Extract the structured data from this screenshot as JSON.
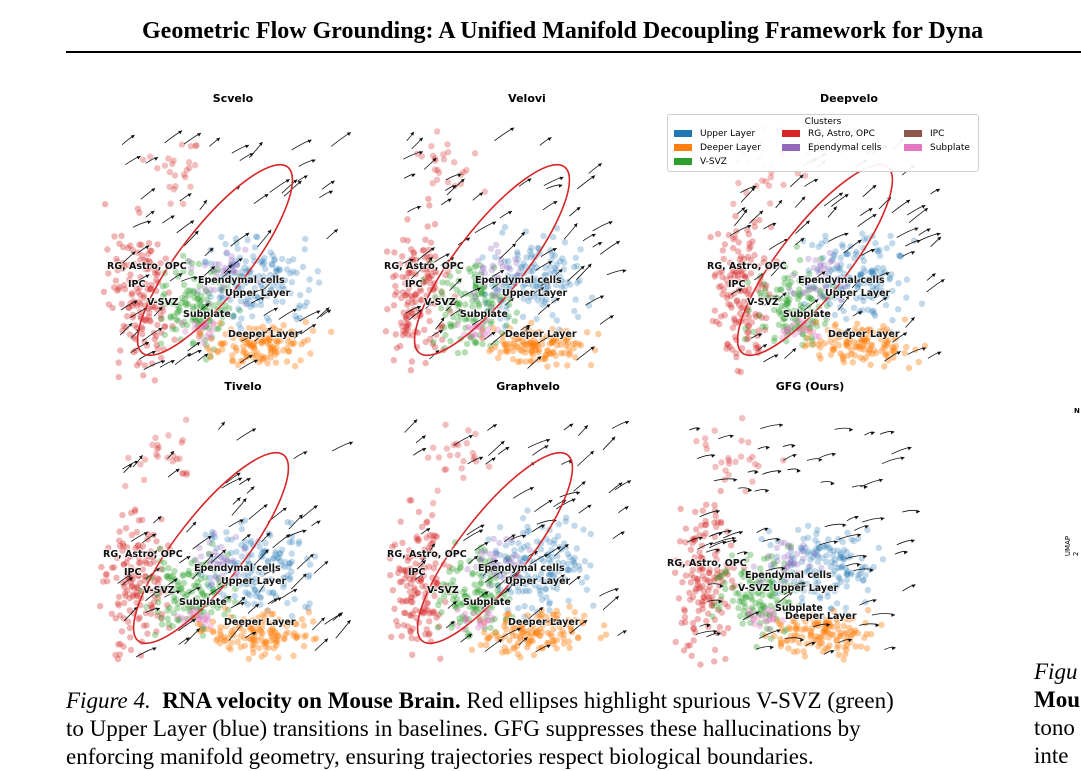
{
  "header": {
    "title": "Geometric Flow Grounding: A Unified Manifold Decoupling Framework for Dyna"
  },
  "figure": {
    "panels": [
      {
        "title": "Scvelo"
      },
      {
        "title": "Velovi"
      },
      {
        "title": "Deepvelo"
      },
      {
        "title": "Tivelo"
      },
      {
        "title": "Graphvelo"
      },
      {
        "title": "GFG (Ours)"
      }
    ],
    "cluster_labels": {
      "rg": "RG, Astro, OPC",
      "ipc": "IPC",
      "vsvz": "V-SVZ",
      "ependymal": "Ependymal cells",
      "upper": "Upper Layer",
      "subplate": "Subplate",
      "deeper": "Deeper Layer"
    },
    "legend": {
      "title": "Clusters",
      "items": [
        {
          "label": "Upper Layer",
          "color": "#1f77b4"
        },
        {
          "label": "Deeper Layer",
          "color": "#ff7f0e"
        },
        {
          "label": "V-SVZ",
          "color": "#2ca02c"
        },
        {
          "label": "RG, Astro, OPC",
          "color": "#d62728"
        },
        {
          "label": "Ependymal cells",
          "color": "#9467bd"
        },
        {
          "label": "IPC",
          "color": "#8c564b"
        },
        {
          "label": "Subplate",
          "color": "#e377c2"
        }
      ]
    },
    "ellipse_color": "#d62728"
  },
  "caption": {
    "label": "Figure 4.",
    "title": "RNA velocity on Mouse Brain.",
    "line1_rest": "Red ellipses highlight spurious V-SVZ (green)",
    "line2": "to Upper Layer (blue) transitions in baselines. GFG suppresses these hallucinations by",
    "line3": "enforcing manifold geometry, ensuring trajectories respect biological boundaries."
  },
  "right_column": {
    "fig_fragment": "Figu",
    "line1": "Mou",
    "line2": "tono",
    "line3": "inte",
    "axis_fragment": "UMAP 2",
    "n_fragment": "N"
  }
}
